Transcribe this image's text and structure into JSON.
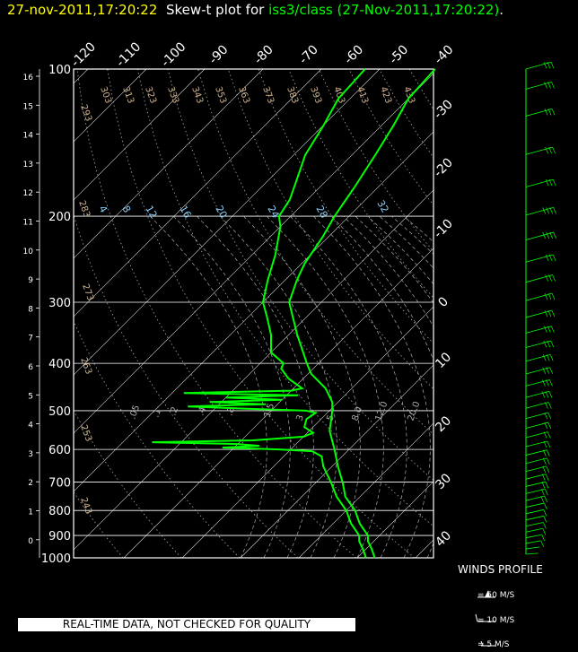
{
  "title": {
    "date_part": "27-nov-2011,17:20:22",
    "mid_part": "Skew-t plot for",
    "station_part": "iss3/class (27-Nov-2011,17:20:22)",
    "end_part": ".",
    "colors": {
      "date": "#ffff00",
      "mid": "#ffffff",
      "station": "#00ff00",
      "end": "#ffffff"
    }
  },
  "banner": "REAL-TIME DATA, NOT CHECKED FOR QUALITY",
  "winds": {
    "title": "WINDS PROFILE",
    "keys": [
      {
        "label": "= 50 M/S",
        "speed": 50
      },
      {
        "label": "= 10 M/S",
        "speed": 10
      },
      {
        "label": "= 5 M/S",
        "speed": 5
      }
    ]
  },
  "chart_data": {
    "type": "line",
    "pressure_ticks": [
      "100",
      "200",
      "300",
      "400",
      "500",
      "600",
      "700",
      "800",
      "900",
      "1000"
    ],
    "height_ticks": [
      "16",
      "15",
      "14",
      "13",
      "12",
      "11",
      "10",
      "9",
      "8",
      "7",
      "6",
      "5",
      "4",
      "3",
      "2",
      "1",
      "0"
    ],
    "top_temp_ticks": [
      "-120",
      "-110",
      "-100",
      "-90",
      "-80",
      "-70",
      "-60",
      "-50",
      "-40"
    ],
    "right_temp_ticks": [
      "-30",
      "-20",
      "-10",
      "0",
      "10",
      "20",
      "30",
      "40"
    ],
    "dry_adiabat_labels": [
      "293",
      "303",
      "313",
      "323",
      "333",
      "343",
      "353",
      "363",
      "373",
      "383",
      "393",
      "403",
      "413",
      "423",
      "433",
      "283",
      "273",
      "263",
      "253",
      "243"
    ],
    "moist_adiabat_labels": [
      "4",
      "8",
      "12",
      "16",
      "20",
      "24",
      "28",
      "32"
    ],
    "mixing_ratio_labels": [
      ".05",
      ".1",
      ".2",
      ".4",
      ".8",
      "1.5",
      "3",
      "5",
      "8.0",
      "12.0",
      "20.0"
    ],
    "colors": {
      "profile": "#00ff00",
      "isobar": "#ffffff",
      "isotherm": "#ffffff",
      "dry_adiabat": "#aaaaaa",
      "moist_adiabat": "#aaaaaa",
      "dry_label": "#d2b48c",
      "moist_label": "#87cefa",
      "axis": "#ffffff"
    },
    "temperature_profile": [
      [
        1000,
        3.0
      ],
      [
        960,
        1.0
      ],
      [
        925,
        -1.0
      ],
      [
        900,
        -2.0
      ],
      [
        850,
        -5.5
      ],
      [
        800,
        -8.5
      ],
      [
        750,
        -12.5
      ],
      [
        700,
        -15.5
      ],
      [
        650,
        -19.0
      ],
      [
        600,
        -22.5
      ],
      [
        550,
        -26.5
      ],
      [
        500,
        -29.5
      ],
      [
        480,
        -31.0
      ],
      [
        450,
        -34.5
      ],
      [
        420,
        -39.5
      ],
      [
        400,
        -42.0
      ],
      [
        350,
        -48.5
      ],
      [
        300,
        -55.5
      ],
      [
        270,
        -58.0
      ],
      [
        250,
        -59.5
      ],
      [
        220,
        -61.0
      ],
      [
        200,
        -62.5
      ],
      [
        175,
        -64.0
      ],
      [
        150,
        -66.0
      ],
      [
        130,
        -68.0
      ],
      [
        115,
        -70.0
      ],
      [
        100,
        -70.5
      ]
    ],
    "dewpoint_profile": [
      [
        1000,
        1.5
      ],
      [
        960,
        -0.5
      ],
      [
        925,
        -2.5
      ],
      [
        900,
        -3.5
      ],
      [
        850,
        -7.0
      ],
      [
        800,
        -10.0
      ],
      [
        750,
        -14.0
      ],
      [
        700,
        -17.5
      ],
      [
        650,
        -21.5
      ],
      [
        620,
        -23.5
      ],
      [
        605,
        -26.0
      ],
      [
        600,
        -32.0
      ],
      [
        595,
        -42.0
      ],
      [
        590,
        -36.0
      ],
      [
        585,
        -40.0
      ],
      [
        580,
        -55.0
      ],
      [
        575,
        -38.0
      ],
      [
        565,
        -30.0
      ],
      [
        555,
        -29.0
      ],
      [
        540,
        -31.5
      ],
      [
        520,
        -32.5
      ],
      [
        505,
        -32.0
      ],
      [
        500,
        -34.0
      ],
      [
        495,
        -45.0
      ],
      [
        490,
        -55.0
      ],
      [
        485,
        -42.0
      ],
      [
        480,
        -52.0
      ],
      [
        475,
        -40.0
      ],
      [
        470,
        -50.0
      ],
      [
        465,
        -38.0
      ],
      [
        460,
        -58.0
      ],
      [
        455,
        -40.0
      ],
      [
        450,
        -38.5
      ],
      [
        430,
        -42.5
      ],
      [
        410,
        -45.5
      ],
      [
        400,
        -46.0
      ],
      [
        380,
        -50.0
      ],
      [
        350,
        -53.0
      ],
      [
        320,
        -57.0
      ],
      [
        300,
        -60.0
      ],
      [
        270,
        -63.0
      ],
      [
        240,
        -66.0
      ],
      [
        210,
        -70.0
      ],
      [
        200,
        -72.0
      ],
      [
        185,
        -73.0
      ],
      [
        170,
        -75.0
      ],
      [
        150,
        -78.0
      ],
      [
        130,
        -80.0
      ],
      [
        115,
        -82.0
      ],
      [
        100,
        -82.5
      ]
    ],
    "wind_profile": [
      {
        "p": 1000,
        "speed": 6,
        "dir": 200
      },
      {
        "p": 975,
        "speed": 9,
        "dir": 215
      },
      {
        "p": 950,
        "speed": 12,
        "dir": 225
      },
      {
        "p": 925,
        "speed": 14,
        "dir": 230
      },
      {
        "p": 900,
        "speed": 16,
        "dir": 235
      },
      {
        "p": 875,
        "speed": 17,
        "dir": 235
      },
      {
        "p": 850,
        "speed": 18,
        "dir": 240
      },
      {
        "p": 825,
        "speed": 18,
        "dir": 240
      },
      {
        "p": 800,
        "speed": 19,
        "dir": 240
      },
      {
        "p": 775,
        "speed": 20,
        "dir": 245
      },
      {
        "p": 750,
        "speed": 21,
        "dir": 245
      },
      {
        "p": 725,
        "speed": 22,
        "dir": 245
      },
      {
        "p": 700,
        "speed": 23,
        "dir": 250
      },
      {
        "p": 675,
        "speed": 24,
        "dir": 250
      },
      {
        "p": 650,
        "speed": 25,
        "dir": 250
      },
      {
        "p": 625,
        "speed": 25,
        "dir": 250
      },
      {
        "p": 600,
        "speed": 26,
        "dir": 250
      },
      {
        "p": 575,
        "speed": 27,
        "dir": 255
      },
      {
        "p": 550,
        "speed": 28,
        "dir": 255
      },
      {
        "p": 525,
        "speed": 28,
        "dir": 255
      },
      {
        "p": 500,
        "speed": 29,
        "dir": 255
      },
      {
        "p": 475,
        "speed": 30,
        "dir": 255
      },
      {
        "p": 450,
        "speed": 31,
        "dir": 255
      },
      {
        "p": 425,
        "speed": 32,
        "dir": 260
      },
      {
        "p": 400,
        "speed": 33,
        "dir": 260
      },
      {
        "p": 375,
        "speed": 34,
        "dir": 260
      },
      {
        "p": 350,
        "speed": 35,
        "dir": 260
      },
      {
        "p": 325,
        "speed": 36,
        "dir": 260
      },
      {
        "p": 300,
        "speed": 37,
        "dir": 265
      },
      {
        "p": 275,
        "speed": 38,
        "dir": 265
      },
      {
        "p": 250,
        "speed": 39,
        "dir": 265
      },
      {
        "p": 225,
        "speed": 40,
        "dir": 265
      },
      {
        "p": 200,
        "speed": 40,
        "dir": 265
      },
      {
        "p": 175,
        "speed": 39,
        "dir": 265
      },
      {
        "p": 150,
        "speed": 38,
        "dir": 265
      },
      {
        "p": 125,
        "speed": 37,
        "dir": 265
      },
      {
        "p": 110,
        "speed": 36,
        "dir": 265
      },
      {
        "p": 100,
        "speed": 35,
        "dir": 265
      }
    ]
  }
}
